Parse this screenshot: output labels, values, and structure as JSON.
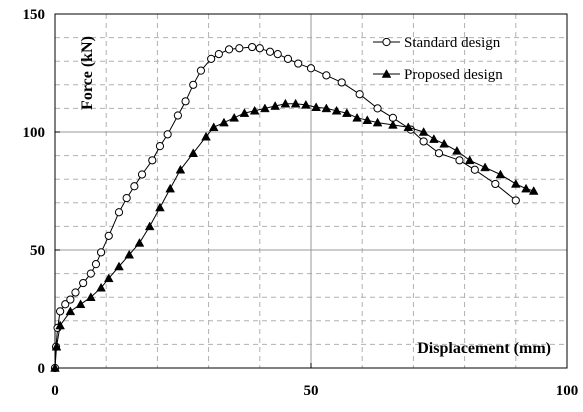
{
  "chart_data": {
    "type": "line",
    "title": "",
    "xlabel": "Displacement  (mm)",
    "ylabel": "Force  (kN)",
    "xlim": [
      0,
      100
    ],
    "ylim": [
      0,
      150
    ],
    "xticks": [
      0,
      50,
      100
    ],
    "yticks": [
      0,
      50,
      100,
      150
    ],
    "grid": true,
    "legend_position": "top-right",
    "series": [
      {
        "name": "Standard design",
        "marker": "circle-open",
        "color": "#000000",
        "points": [
          [
            0,
            0
          ],
          [
            0.2,
            9
          ],
          [
            0.5,
            17
          ],
          [
            1,
            24
          ],
          [
            2,
            27
          ],
          [
            3,
            29
          ],
          [
            4,
            32
          ],
          [
            5.5,
            36
          ],
          [
            7,
            40
          ],
          [
            8,
            44
          ],
          [
            9,
            49
          ],
          [
            10.5,
            56
          ],
          [
            12.5,
            66
          ],
          [
            14,
            72
          ],
          [
            15.5,
            77
          ],
          [
            17,
            82
          ],
          [
            19,
            88
          ],
          [
            20.5,
            94
          ],
          [
            22,
            99
          ],
          [
            24,
            107
          ],
          [
            25.5,
            113
          ],
          [
            27,
            120
          ],
          [
            28.5,
            126
          ],
          [
            30.5,
            131
          ],
          [
            32,
            133
          ],
          [
            34,
            135
          ],
          [
            36,
            135.5
          ],
          [
            38.5,
            136
          ],
          [
            40,
            135.5
          ],
          [
            42,
            134
          ],
          [
            43.5,
            133
          ],
          [
            45.5,
            131
          ],
          [
            47.5,
            129
          ],
          [
            50,
            127
          ],
          [
            53,
            124
          ],
          [
            56,
            121
          ],
          [
            59.5,
            116
          ],
          [
            63,
            110
          ],
          [
            66,
            106
          ],
          [
            69.5,
            101
          ],
          [
            72,
            96
          ],
          [
            75,
            91
          ],
          [
            79,
            88
          ],
          [
            82,
            84
          ],
          [
            86,
            78
          ],
          [
            90,
            71
          ]
        ]
      },
      {
        "name": "Proposed design",
        "marker": "triangle-filled",
        "color": "#000000",
        "points": [
          [
            0,
            0
          ],
          [
            0.3,
            9
          ],
          [
            1,
            18
          ],
          [
            3,
            24
          ],
          [
            5,
            27
          ],
          [
            7,
            30
          ],
          [
            9,
            34
          ],
          [
            10.5,
            38
          ],
          [
            12.5,
            43
          ],
          [
            14.5,
            48
          ],
          [
            16.5,
            53
          ],
          [
            18.5,
            60
          ],
          [
            20.5,
            68
          ],
          [
            22.5,
            76
          ],
          [
            24.5,
            84
          ],
          [
            27,
            91
          ],
          [
            29.5,
            98
          ],
          [
            31,
            102
          ],
          [
            33,
            104
          ],
          [
            35,
            106
          ],
          [
            37,
            108
          ],
          [
            39,
            109
          ],
          [
            41,
            110
          ],
          [
            43,
            111
          ],
          [
            45,
            112
          ],
          [
            47,
            112
          ],
          [
            49,
            111.5
          ],
          [
            51,
            110.5
          ],
          [
            53,
            110
          ],
          [
            55,
            109
          ],
          [
            57,
            108
          ],
          [
            59,
            106
          ],
          [
            61,
            105
          ],
          [
            63,
            104
          ],
          [
            66,
            103
          ],
          [
            69,
            102
          ],
          [
            72,
            100
          ],
          [
            74,
            97
          ],
          [
            76,
            95
          ],
          [
            78.5,
            92
          ],
          [
            81,
            88
          ],
          [
            84,
            85
          ],
          [
            87,
            82
          ],
          [
            90,
            78
          ],
          [
            92,
            76
          ],
          [
            93.5,
            75
          ]
        ]
      }
    ]
  }
}
